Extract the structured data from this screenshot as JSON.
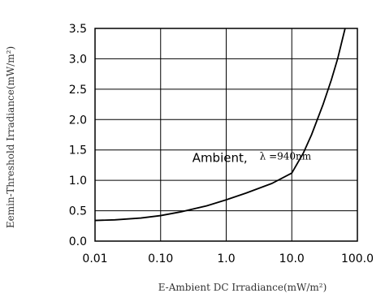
{
  "chart_data": {
    "type": "line",
    "xlabel": "E-Ambient DC Irradiance(mW/m²)",
    "ylabel": "Eemin-Threshold Irradiance(mW/m²)",
    "x_scale": "log",
    "xlim": [
      0.01,
      100.0
    ],
    "ylim": [
      0.0,
      3.5
    ],
    "x_ticks": [
      0.01,
      0.1,
      1.0,
      10.0,
      100.0
    ],
    "x_tick_labels": [
      "0.01",
      "0.10",
      "1.0",
      "10.0",
      "100.0"
    ],
    "y_ticks": [
      0.0,
      0.5,
      1.0,
      1.5,
      2.0,
      2.5,
      3.0,
      3.5
    ],
    "y_tick_labels": [
      "0.0",
      "0.5",
      "1.0",
      "1.5",
      "2.0",
      "2.5",
      "3.0",
      "3.5"
    ],
    "grid": true,
    "series": [
      {
        "x": [
          0.01,
          0.02,
          0.05,
          0.1,
          0.2,
          0.5,
          1.0,
          2.0,
          5.0,
          10.0,
          15.0,
          20.0,
          30.0,
          40.0,
          50.0,
          60.0,
          65.0
        ],
        "y": [
          0.34,
          0.35,
          0.38,
          0.42,
          0.48,
          0.58,
          0.68,
          0.79,
          0.95,
          1.12,
          1.45,
          1.75,
          2.25,
          2.65,
          3.0,
          3.35,
          3.5
        ]
      }
    ],
    "annotations": [
      {
        "text": "Ambient,",
        "style": "main",
        "x": 0.8,
        "y": 1.3
      },
      {
        "text": "λ =940nm",
        "style": "sub",
        "x": 8.0,
        "y": 1.34
      }
    ],
    "colors": {
      "line": "#000000",
      "grid": "#000000",
      "axis": "#000000"
    }
  }
}
